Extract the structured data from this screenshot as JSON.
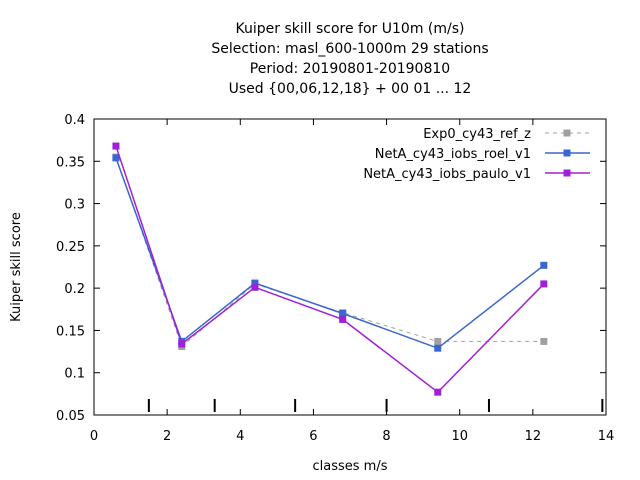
{
  "chart_data": {
    "type": "line",
    "title_lines": [
      "Kuiper skill score  for U10m (m/s)",
      "Selection: masl_600-1000m     29 stations",
      "Period: 20190801-20190810",
      "Used {00,06,12,18} + 00 01 ... 12"
    ],
    "xlabel": "classes m/s",
    "ylabel": "Kuiper skill score",
    "xlim": [
      0,
      14
    ],
    "ylim": [
      0.05,
      0.4
    ],
    "xticks": [
      0,
      2,
      4,
      6,
      8,
      10,
      12,
      14
    ],
    "xtick_labels": [
      "0",
      "2",
      "4",
      "6",
      "8",
      "10",
      "12",
      "14"
    ],
    "yticks": [
      0.05,
      0.1,
      0.15,
      0.2,
      0.25,
      0.3,
      0.35,
      0.4
    ],
    "ytick_labels": [
      "0.05",
      "0.1",
      "0.15",
      "0.2",
      "0.25",
      "0.3",
      "0.35",
      "0.4"
    ],
    "class_bounds": [
      1.5,
      3.3,
      5.5,
      8.0,
      10.8,
      13.9
    ],
    "grid": false,
    "legend_position": "top-right",
    "x": [
      0.6,
      2.4,
      4.4,
      6.8,
      9.4,
      12.3
    ],
    "series": [
      {
        "name": "Exp0_cy43_ref_z",
        "color": "#a0a0a0",
        "dashed": true,
        "values": [
          0.355,
          0.131,
          0.205,
          0.171,
          0.137,
          0.137
        ]
      },
      {
        "name": "NetA_cy43_iobs_roel_v1",
        "color": "#3a66d0",
        "dashed": false,
        "values": [
          0.354,
          0.137,
          0.206,
          0.17,
          0.129,
          0.227
        ]
      },
      {
        "name": "NetA_cy43_iobs_paulo_v1",
        "color": "#a020d8",
        "dashed": false,
        "values": [
          0.368,
          0.134,
          0.201,
          0.163,
          0.077,
          0.205
        ]
      }
    ]
  }
}
